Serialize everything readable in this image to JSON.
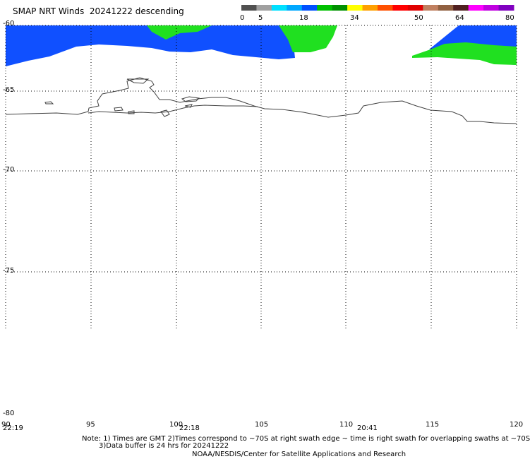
{
  "title": "SMAP NRT Winds  20241222 descending",
  "colorbar": {
    "segments": [
      {
        "color": "#505050"
      },
      {
        "color": "#a0a0a0"
      },
      {
        "color": "#00e0ff"
      },
      {
        "color": "#00a8ff"
      },
      {
        "color": "#0050ff"
      },
      {
        "color": "#00c000"
      },
      {
        "color": "#009000"
      },
      {
        "color": "#ffff00"
      },
      {
        "color": "#ffa000"
      },
      {
        "color": "#ff5000"
      },
      {
        "color": "#ff0000"
      },
      {
        "color": "#e00000"
      },
      {
        "color": "#c08060"
      },
      {
        "color": "#906040"
      },
      {
        "color": "#502020"
      },
      {
        "color": "#ff00ff"
      },
      {
        "color": "#c000e0"
      },
      {
        "color": "#8000c0"
      }
    ],
    "labels": [
      "0",
      "5",
      "18",
      "34",
      "50",
      "64",
      "80"
    ]
  },
  "map": {
    "lat_labels": [
      "-60",
      "-65",
      "-70",
      "-75",
      "-80"
    ],
    "lon_labels": [
      "90",
      "95",
      "100",
      "105",
      "110",
      "115",
      "120"
    ],
    "swath_times": [
      "22:19",
      "22:18",
      "20:41"
    ],
    "colors": {
      "low_wind": "#1050ff",
      "mid_wind": "#20e020",
      "coast": "#404040",
      "grid": "#000000"
    }
  },
  "notes": {
    "line1": "Note: 1) Times are GMT 2)Times correspond to ~70S at right swath edge ~ time is right swath for overlapping swaths at ~70S",
    "line2": "3)Data buffer is 24 hrs for 20241222",
    "line3": "NOAA/NESDIS/Center for Satellite Applications and Research"
  }
}
